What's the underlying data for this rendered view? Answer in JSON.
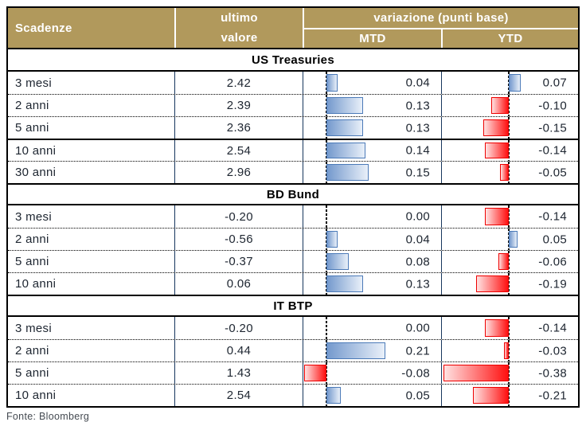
{
  "colors": {
    "header_bg": "#b1995c",
    "header_text": "#ffffff",
    "column_border": "#17365d",
    "row_text": "#1d2530",
    "section_text": "#000000",
    "positive_bar_border": "#4b7ab8",
    "positive_bar_start": "#7499cd",
    "positive_bar_end": "#e9f0f9",
    "negative_bar_border": "#ee0000",
    "negative_bar_start": "#ffe2e2",
    "negative_bar_end": "#ff1010",
    "footer_text": "#454b52"
  },
  "header": {
    "maturity_label": "Scadenze",
    "last_value_line1": "ultimo",
    "last_value_line2": "valore",
    "variation_label": "variazione (punti base)",
    "mtd_label": "MTD",
    "ytd_label": "YTD"
  },
  "footer": {
    "source": "Fonte: Bloomberg"
  },
  "chart_data": {
    "type": "table",
    "columns": [
      "Scadenze",
      "ultimo valore",
      "variazione (punti base) MTD",
      "variazione (punti base) YTD"
    ],
    "bar_axes": {
      "mtd": {
        "min": -0.08,
        "max": 0.21
      },
      "ytd": {
        "min": -0.38,
        "max": 0.07
      }
    },
    "sections": [
      {
        "name": "US Treasuries",
        "solid_divider_before_row": 3,
        "rows": [
          {
            "label": "3 mesi",
            "last": "2.42",
            "mtd": 0.04,
            "ytd": 0.07
          },
          {
            "label": "2 anni",
            "last": "2.39",
            "mtd": 0.13,
            "ytd": -0.1
          },
          {
            "label": "5 anni",
            "last": "2.36",
            "mtd": 0.13,
            "ytd": -0.15
          },
          {
            "label": "10 anni",
            "last": "2.54",
            "mtd": 0.14,
            "ytd": -0.14
          },
          {
            "label": "30 anni",
            "last": "2.96",
            "mtd": 0.15,
            "ytd": -0.05
          }
        ]
      },
      {
        "name": "BD Bund",
        "rows": [
          {
            "label": "3 mesi",
            "last": "-0.20",
            "mtd": 0.0,
            "ytd": -0.14
          },
          {
            "label": "2 anni",
            "last": "-0.56",
            "mtd": 0.04,
            "ytd": 0.05
          },
          {
            "label": "5 anni",
            "last": "-0.37",
            "mtd": 0.08,
            "ytd": -0.06
          },
          {
            "label": "10 anni",
            "last": "0.06",
            "mtd": 0.13,
            "ytd": -0.19
          }
        ]
      },
      {
        "name": "IT BTP",
        "rows": [
          {
            "label": "3 mesi",
            "last": "-0.20",
            "mtd": 0.0,
            "ytd": -0.14
          },
          {
            "label": "2 anni",
            "last": "0.44",
            "mtd": 0.21,
            "ytd": -0.03
          },
          {
            "label": "5 anni",
            "last": "1.43",
            "mtd": -0.08,
            "ytd": -0.38
          },
          {
            "label": "10 anni",
            "last": "2.54",
            "mtd": 0.05,
            "ytd": -0.21
          }
        ]
      }
    ]
  }
}
